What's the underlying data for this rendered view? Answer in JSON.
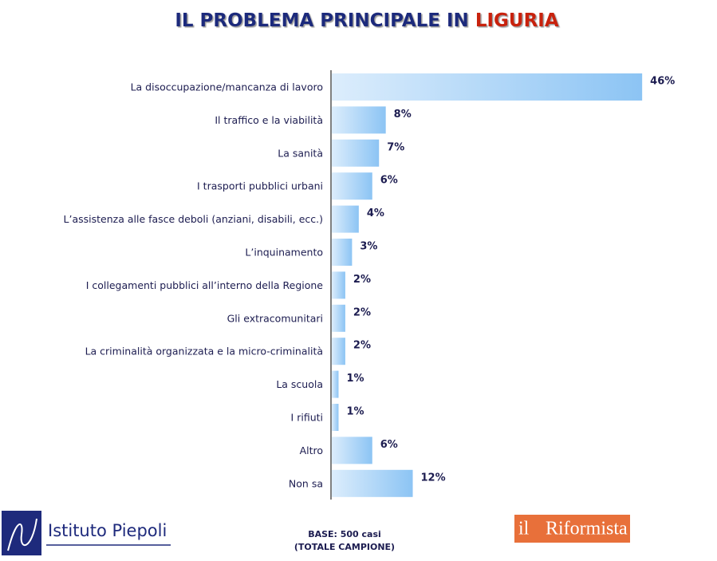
{
  "chart_data": {
    "type": "bar",
    "orientation": "horizontal",
    "title": "IL PROBLEMA PRINCIPALE IN",
    "title_highlight": "LIGURIA",
    "categories": [
      "La disoccupazione/mancanza di lavoro",
      "Il traffico e la viabilità",
      "La sanità",
      "I trasporti pubblici urbani",
      "L’assistenza alle fasce deboli (anziani, disabili, ecc.)",
      "L’inquinamento",
      "I collegamenti pubblici all’interno della Regione",
      "Gli extracomunitari",
      "La criminalità organizzata e la micro-criminalità",
      "La scuola",
      "I rifiuti",
      "Altro",
      "Non sa"
    ],
    "values": [
      46,
      8,
      7,
      6,
      4,
      3,
      2,
      2,
      2,
      1,
      1,
      6,
      12
    ],
    "value_labels": [
      "46%",
      "8%",
      "7%",
      "6%",
      "4%",
      "3%",
      "2%",
      "2%",
      "2%",
      "1%",
      "1%",
      "6%",
      "12%"
    ],
    "color": "#8cc4f4",
    "footer": {
      "base": "BASE: 500 casi",
      "note": "(TOTALE CAMPIONE)"
    },
    "logos": {
      "left": "Istituto Piepoli",
      "right_small": "il",
      "right": "Riformista"
    }
  }
}
